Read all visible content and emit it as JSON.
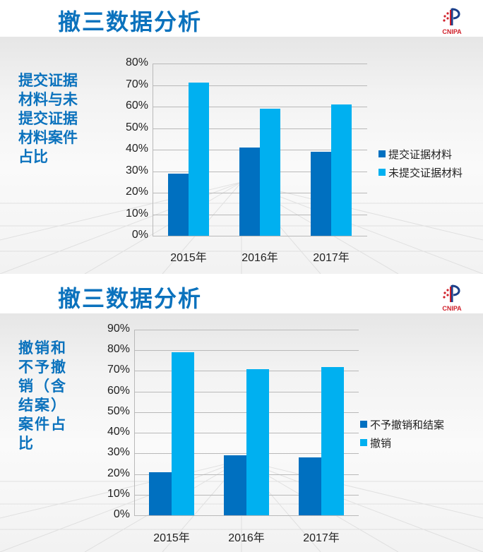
{
  "colors": {
    "title_blue": "#0b72bd",
    "series_dark": "#0070c0",
    "series_light": "#00b0f0",
    "logo_red": "#d0202a"
  },
  "slides": [
    {
      "title": "撤三数据分析",
      "logo_text": "CNIPA",
      "side_title": "提交证据材料与未提交证据材料案件占比"
    },
    {
      "title": "撤三数据分析",
      "logo_text": "CNIPA",
      "side_title": "撤销和不予撤销（含结案）案件占比"
    }
  ],
  "chart_data": [
    {
      "type": "bar",
      "title": "提交证据材料与未提交证据材料案件占比",
      "categories": [
        "2015年",
        "2016年",
        "2017年"
      ],
      "series": [
        {
          "name": "提交证据材料",
          "values": [
            29,
            41,
            39
          ],
          "color": "#0070c0"
        },
        {
          "name": "未提交证据材料",
          "values": [
            71,
            59,
            61
          ],
          "color": "#00b0f0"
        }
      ],
      "xlabel": "",
      "ylabel": "",
      "ylim": [
        0,
        80
      ],
      "yticks": [
        "0%",
        "10%",
        "20%",
        "30%",
        "40%",
        "50%",
        "60%",
        "70%",
        "80%"
      ],
      "grid": true,
      "legend_position": "right"
    },
    {
      "type": "bar",
      "title": "撤销和不予撤销（含结案）案件占比",
      "categories": [
        "2015年",
        "2016年",
        "2017年"
      ],
      "series": [
        {
          "name": "不予撤销和结案",
          "values": [
            21,
            29,
            28
          ],
          "color": "#0070c0"
        },
        {
          "name": "撤销",
          "values": [
            79,
            71,
            72
          ],
          "color": "#00b0f0"
        }
      ],
      "xlabel": "",
      "ylabel": "",
      "ylim": [
        0,
        90
      ],
      "yticks": [
        "0%",
        "10%",
        "20%",
        "30%",
        "40%",
        "50%",
        "60%",
        "70%",
        "80%",
        "90%"
      ],
      "grid": true,
      "legend_position": "right"
    }
  ]
}
